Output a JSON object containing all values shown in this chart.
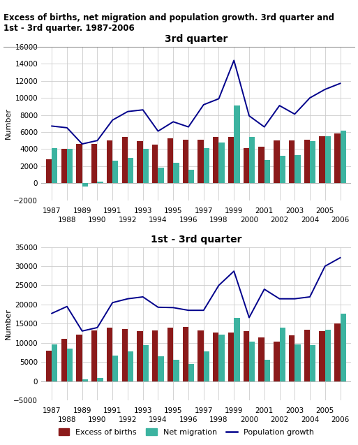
{
  "title_main": "Excess of births, net migration and population growth. 3rd quarter and\n1st - 3rd quarter. 1987-2006",
  "title_q3": "3rd quarter",
  "title_q13": "1st - 3rd quarter",
  "years": [
    1987,
    1988,
    1989,
    1990,
    1991,
    1992,
    1993,
    1994,
    1995,
    1996,
    1997,
    1998,
    1999,
    2000,
    2001,
    2002,
    2003,
    2004,
    2005,
    2006
  ],
  "q3_births": [
    2800,
    4000,
    4600,
    4600,
    5000,
    5400,
    4900,
    4500,
    5300,
    5100,
    5100,
    5400,
    5400,
    4100,
    4300,
    5000,
    5000,
    5100,
    5500,
    5800
  ],
  "q3_migration": [
    4100,
    4000,
    -400,
    200,
    2600,
    3000,
    4000,
    1800,
    2400,
    1600,
    4100,
    4800,
    9100,
    5400,
    2700,
    3200,
    3300,
    4900,
    5500,
    6200
  ],
  "q3_popgrowth": [
    6700,
    6500,
    4600,
    5000,
    7400,
    8400,
    8600,
    6100,
    7200,
    6600,
    9200,
    9900,
    14400,
    7900,
    6600,
    9100,
    8100,
    10000,
    11000,
    11700
  ],
  "q13_births": [
    8000,
    11100,
    12200,
    13200,
    14000,
    13700,
    13100,
    13200,
    14000,
    14100,
    13300,
    12700,
    12700,
    13100,
    11400,
    10400,
    12000,
    13400,
    13100,
    15100
  ],
  "q13_migration": [
    9600,
    8600,
    500,
    800,
    6700,
    7800,
    9500,
    6500,
    5600,
    4600,
    7800,
    12100,
    16600,
    10400,
    5700,
    14000,
    9600,
    9500,
    13500,
    17600
  ],
  "q13_popgrowth": [
    17700,
    19500,
    13100,
    14000,
    20500,
    21500,
    22000,
    19300,
    19200,
    18500,
    18500,
    25000,
    28700,
    16600,
    24000,
    21500,
    21500,
    22000,
    30000,
    32200
  ],
  "color_births": "#8B1A1A",
  "color_migration": "#3CB3A0",
  "color_popgrowth": "#00008B",
  "bar_width": 0.38,
  "q3_ylim": [
    -2000,
    16000
  ],
  "q3_yticks": [
    -2000,
    0,
    2000,
    4000,
    6000,
    8000,
    10000,
    12000,
    14000,
    16000
  ],
  "q13_ylim": [
    -5000,
    35000
  ],
  "q13_yticks": [
    -5000,
    0,
    5000,
    10000,
    15000,
    20000,
    25000,
    30000,
    35000
  ],
  "ylabel": "Number",
  "legend_labels": [
    "Excess of births",
    "Net migration",
    "Population growth"
  ],
  "bg_color": "#ffffff",
  "grid_color": "#cccccc"
}
